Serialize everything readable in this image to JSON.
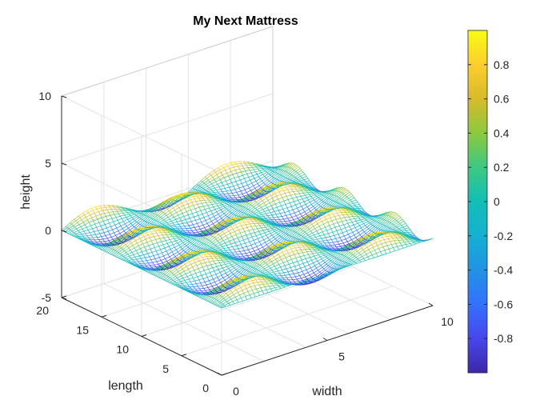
{
  "chart_data": {
    "type": "mesh",
    "title": "My Next Mattress",
    "xlabel": "width",
    "ylabel": "length",
    "zlabel": "height",
    "xlim": [
      0,
      10
    ],
    "ylim": [
      0,
      20
    ],
    "zlim": [
      -5,
      10
    ],
    "xticks": [
      "0",
      "5",
      "10"
    ],
    "yticks": [
      "0",
      "5",
      "10",
      "15",
      "20"
    ],
    "zticks": [
      "-5",
      "0",
      "5",
      "10"
    ],
    "surface": {
      "function": "z = sin(x) * sin(y)",
      "x_step": 0.2,
      "y_step": 0.2
    },
    "colorbar": {
      "colormap": "parula",
      "range": [
        -1,
        1
      ],
      "ticks": [
        "-0.8",
        "-0.6",
        "-0.4",
        "-0.2",
        "0",
        "0.2",
        "0.4",
        "0.6",
        "0.8"
      ]
    },
    "grid": true,
    "view": "3d"
  }
}
